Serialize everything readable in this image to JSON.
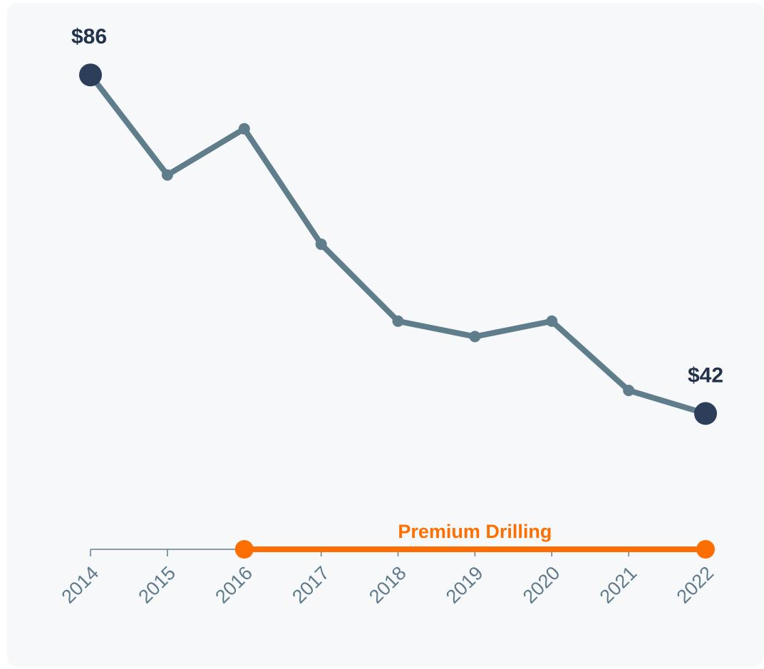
{
  "chart_data": {
    "type": "line",
    "categories": [
      "2014",
      "2015",
      "2016",
      "2017",
      "2018",
      "2019",
      "2020",
      "2021",
      "2022"
    ],
    "series": [
      {
        "color": "#607d8b",
        "values": [
          86,
          73,
          79,
          64,
          54,
          52,
          54,
          45,
          42
        ],
        "value_labels": [
          "$86",
          null,
          null,
          null,
          null,
          null,
          null,
          null,
          "$42"
        ]
      }
    ],
    "ylim": [
      40,
      90
    ],
    "annotation": {
      "label": "Premium Drilling",
      "from": "2016",
      "to": "2022",
      "color": "#ff6f00"
    }
  }
}
